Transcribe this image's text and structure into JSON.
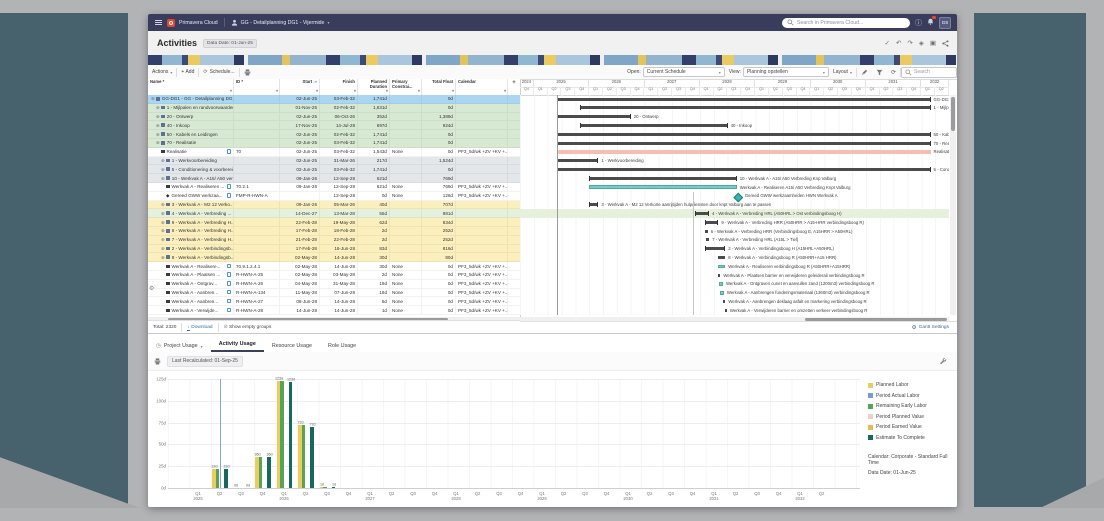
{
  "frame": {
    "wall_color": "#47626d"
  },
  "navbar": {
    "brand": "Primavera Cloud",
    "project": "GG - Detailplanning DG1 - Vijermide",
    "search_placeholder": "Search in Primavera Cloud...",
    "avatar": "GS"
  },
  "page": {
    "title": "Activities",
    "data_date_label": "Data Date: 01-Jun-25"
  },
  "table_toolbar": {
    "actions": "Actions",
    "add": "+ Add",
    "schedule": "Schedule..."
  },
  "gantt_toolbar": {
    "open_label": "Open:",
    "open_value": "Current Schedule",
    "view_label": "View:",
    "view_value": "Planning opstellen",
    "layout": "Layout",
    "search_placeholder": "Search"
  },
  "table": {
    "columns": [
      {
        "label": "Name *",
        "w": 86,
        "align": "left",
        "sort": false
      },
      {
        "label": "ID *",
        "w": 46,
        "align": "left",
        "sort": false
      },
      {
        "label": "Start",
        "w": 40,
        "align": "right",
        "sort": true
      },
      {
        "label": "Finish",
        "w": 38,
        "align": "right",
        "sort": false
      },
      {
        "label": "Planned Duration",
        "w": 32,
        "align": "right",
        "sort": false
      },
      {
        "label": "Primary Constrai...",
        "w": 32,
        "align": "left",
        "sort": false
      },
      {
        "label": "Total Float",
        "w": 34,
        "align": "right",
        "sort": false
      },
      {
        "label": "Calendar",
        "w": 52,
        "align": "left",
        "sort": false
      }
    ],
    "rows": [
      {
        "name": "GG-DG1 - GG - Detailplanning DG1 -...",
        "icon": "wbs",
        "lvl": 0,
        "bg": "sel",
        "note": false,
        "id": "",
        "start": "02-Jun-25",
        "finish": "03-Feb-32",
        "dur": "1,741d",
        "constr": "",
        "float": "0d",
        "cal": ""
      },
      {
        "name": "1 - Mijlpalen en randvoorwaarden",
        "icon": "wbs",
        "lvl": 1,
        "bg": "green",
        "note": false,
        "id": "",
        "start": "01-Nov-25",
        "finish": "02-Feb-32",
        "dur": "1,631d",
        "constr": "",
        "float": "0d",
        "cal": ""
      },
      {
        "name": "20 - Ontwerp",
        "icon": "wbs",
        "lvl": 1,
        "bg": "green",
        "note": false,
        "id": "",
        "start": "02-Jun-25",
        "finish": "06-Oct-26",
        "dur": "352d",
        "constr": "",
        "float": "1,389d",
        "cal": ""
      },
      {
        "name": "40 - Inkoop",
        "icon": "wbs",
        "lvl": 1,
        "bg": "green",
        "note": false,
        "id": "",
        "start": "17-Nov-25",
        "finish": "14-Jul-28",
        "dur": "697d",
        "constr": "",
        "float": "924d",
        "cal": ""
      },
      {
        "name": "50 - Kabels en Leidingen",
        "icon": "wbs",
        "lvl": 1,
        "bg": "green",
        "note": false,
        "id": "",
        "start": "02-Jun-25",
        "finish": "02-Feb-32",
        "dur": "1,741d",
        "constr": "",
        "float": "0d",
        "cal": ""
      },
      {
        "name": "70 - Realisatie",
        "icon": "wbs",
        "lvl": 1,
        "bg": "green",
        "note": false,
        "id": "",
        "start": "02-Jun-25",
        "finish": "03-Feb-32",
        "dur": "1,741d",
        "constr": "",
        "float": "0d",
        "cal": ""
      },
      {
        "name": "Realisatie",
        "icon": "act",
        "lvl": 2,
        "bg": "white",
        "note": true,
        "id": "70",
        "start": "02-Jun-25",
        "finish": "03-Feb-32",
        "dur": "1,543d",
        "constr": "None",
        "float": "0d",
        "cal": "PF3_5d/wk +ZV +KV +..."
      },
      {
        "name": "1 - Werkvoorbereiding",
        "icon": "wbs",
        "lvl": 2,
        "bg": "gray",
        "note": false,
        "id": "",
        "start": "02-Jun-25",
        "finish": "31-Mar-26",
        "dur": "217d",
        "constr": "",
        "float": "1,524d",
        "cal": ""
      },
      {
        "name": "5 - Conditionering & voorbereid...",
        "icon": "wbs",
        "lvl": 2,
        "bg": "gray",
        "note": false,
        "id": "",
        "start": "02-Jun-25",
        "finish": "03-Feb-32",
        "dur": "1,741d",
        "constr": "",
        "float": "0d",
        "cal": ""
      },
      {
        "name": "10 - Werkvak A - A15/ A50 ver...",
        "icon": "wbs",
        "lvl": 2,
        "bg": "gray",
        "note": false,
        "id": "",
        "start": "09-Jan-26",
        "finish": "12-Sep-28",
        "dur": "621d",
        "constr": "",
        "float": "769d",
        "cal": ""
      },
      {
        "name": "Werkvak A - Realiseren ...",
        "icon": "act",
        "lvl": 3,
        "bg": "white",
        "note": true,
        "id": "70.2.1",
        "start": "09-Jan-26",
        "finish": "12-Sep-28",
        "dur": "621d",
        "constr": "None",
        "float": "769d",
        "cal": "PF3_5d/wk +ZV +KV +..."
      },
      {
        "name": "Gereed GWW werkzaa...",
        "icon": "ms",
        "lvl": 3,
        "bg": "white",
        "note": true,
        "id": "FMP-R-HWN-A",
        "start": "",
        "finish": "12-Sep-28",
        "dur": "0d",
        "constr": "None",
        "float": "126d",
        "cal": "PF3_5d/wk +ZV +KV +..."
      },
      {
        "name": "3 - Werkvak A - M2 12 Verko...",
        "icon": "wbs",
        "lvl": 2,
        "bg": "yellow",
        "note": false,
        "id": "",
        "start": "09-Jan-26",
        "finish": "05-Mar-26",
        "dur": "40d",
        "constr": "",
        "float": "707d",
        "cal": ""
      },
      {
        "name": "4 - Werkvak A - Verbreding ...",
        "icon": "wbs",
        "lvl": 2,
        "bg": "hl",
        "note": false,
        "id": "",
        "start": "14-Dec-27",
        "finish": "13-Mar-28",
        "dur": "55d",
        "constr": "",
        "float": "881d",
        "cal": ""
      },
      {
        "name": "9 - Werkvak A - Verbreding H...",
        "icon": "wbs",
        "lvl": 2,
        "bg": "yellow",
        "note": false,
        "id": "",
        "start": "22-Feb-28",
        "finish": "19-May-28",
        "dur": "62d",
        "constr": "",
        "float": "834d",
        "cal": ""
      },
      {
        "name": "6 - Werkvak A - Verbreding H...",
        "icon": "wbs",
        "lvl": 2,
        "bg": "yellow",
        "note": false,
        "id": "",
        "start": "17-Feb-28",
        "finish": "18-Feb-28",
        "dur": "2d",
        "constr": "",
        "float": "252d",
        "cal": ""
      },
      {
        "name": "7 - Werkvak A - Verbreding H...",
        "icon": "wbs",
        "lvl": 2,
        "bg": "yellow",
        "note": false,
        "id": "",
        "start": "21-Feb-28",
        "finish": "22-Feb-28",
        "dur": "2d",
        "constr": "",
        "float": "252d",
        "cal": ""
      },
      {
        "name": "2 - Werkvak A - Verbindingsb...",
        "icon": "wbs",
        "lvl": 2,
        "bg": "yellow",
        "note": false,
        "id": "",
        "start": "17-Feb-28",
        "finish": "16-Jun-28",
        "dur": "83d",
        "constr": "",
        "float": "816d",
        "cal": ""
      },
      {
        "name": "8 - Werkvak A - Verbindingsb...",
        "icon": "wbs",
        "lvl": 2,
        "bg": "yellow",
        "note": false,
        "id": "",
        "start": "02-May-28",
        "finish": "14-Jun-28",
        "dur": "30d",
        "constr": "",
        "float": "80d",
        "cal": ""
      },
      {
        "name": "Werkvak A - Realisere...",
        "icon": "act",
        "lvl": 3,
        "bg": "white",
        "note": true,
        "id": "70.9.1.2.4.1",
        "start": "02-May-28",
        "finish": "14-Jun-28",
        "dur": "30d",
        "constr": "None",
        "float": "0d",
        "cal": "PF3_5d/wk +ZV +KV +..."
      },
      {
        "name": "Werkvak A - Plaatsen ...",
        "icon": "act",
        "lvl": 3,
        "bg": "white",
        "note": true,
        "id": "R-HWN-A-25",
        "start": "02-May-28",
        "finish": "03-May-28",
        "dur": "2d",
        "constr": "None",
        "float": "0d",
        "cal": "PF3_5d/wk +ZV +KV +..."
      },
      {
        "name": "Werkvak A - Ontgrav...",
        "icon": "act",
        "lvl": 3,
        "bg": "white",
        "note": true,
        "id": "R-HWN-A-26",
        "start": "04-May-28",
        "finish": "31-May-28",
        "dur": "19d",
        "constr": "None",
        "float": "0d",
        "cal": "PF3_5d/wk +ZV +KV +..."
      },
      {
        "name": "Werkvak A - Aanbren...",
        "icon": "act",
        "lvl": 3,
        "bg": "white",
        "note": true,
        "id": "R-HWN-A-134",
        "start": "11-May-28",
        "finish": "07-Jun-28",
        "dur": "18d",
        "constr": "None",
        "float": "0d",
        "cal": "PF3_5d/wk +ZV +KV +..."
      },
      {
        "name": "Werkvak A - Aanbren...",
        "icon": "act",
        "lvl": 3,
        "bg": "white",
        "note": true,
        "id": "R-HWN-A-27",
        "start": "08-Jun-28",
        "finish": "14-Jun-28",
        "dur": "5d",
        "constr": "None",
        "float": "0d",
        "cal": "PF3_5d/wk +ZV +KV +..."
      },
      {
        "name": "Werkvak A - Verwijde...",
        "icon": "act",
        "lvl": 3,
        "bg": "white",
        "note": true,
        "id": "R-HWN-A-28",
        "start": "14-Jun-28",
        "finish": "14-Jun-28",
        "dur": "1d",
        "constr": "None",
        "float": "0d",
        "cal": "PF3_5d/wk +ZV +KV +..."
      }
    ],
    "footer": {
      "total": "Total: 2320",
      "download": "Download",
      "show_empty": "Show empty groups"
    }
  },
  "gantt": {
    "span_months": 93,
    "data_date_month": 8,
    "focus_month": 37.5,
    "settings_label": "Gantt Settings",
    "years": [
      {
        "label": "2024",
        "quarters": [
          "Q4"
        ]
      },
      {
        "label": "2025",
        "quarters": [
          "Q1",
          "Q2",
          "Q3",
          "Q4"
        ]
      },
      {
        "label": "2026",
        "quarters": [
          "Q1",
          "Q2",
          "Q3",
          "Q4"
        ]
      },
      {
        "label": "2027",
        "quarters": [
          "Q1",
          "Q2",
          "Q3",
          "Q4"
        ]
      },
      {
        "label": "2028",
        "quarters": [
          "Q1",
          "Q2",
          "Q3",
          "Q4"
        ]
      },
      {
        "label": "2029",
        "quarters": [
          "Q1",
          "Q2",
          "Q3",
          "Q4"
        ]
      },
      {
        "label": "2030",
        "quarters": [
          "Q1",
          "Q2",
          "Q3",
          "Q4"
        ]
      },
      {
        "label": "2031",
        "quarters": [
          "Q1",
          "Q2",
          "Q3",
          "Q4"
        ]
      },
      {
        "label": "2032",
        "quarters": [
          "Q1",
          "Q2"
        ]
      }
    ],
    "rows": [
      {
        "kind": "summary",
        "s": 8,
        "e": 89,
        "label": "GG-DG1"
      },
      {
        "kind": "summary",
        "s": 13,
        "e": 89,
        "label": "1 - Mijlp..."
      },
      {
        "kind": "summary",
        "s": 8,
        "e": 24,
        "label": "20 - Ontwerp"
      },
      {
        "kind": "summary",
        "s": 13,
        "e": 45,
        "label": "40 - Inkoop"
      },
      {
        "kind": "summary",
        "s": 8,
        "e": 89,
        "label": "50 - Kab"
      },
      {
        "kind": "summary",
        "s": 8,
        "e": 89,
        "label": "70 - Rea"
      },
      {
        "kind": "salmon",
        "s": 8,
        "e": 89,
        "label": "Realisati"
      },
      {
        "kind": "summary",
        "s": 8,
        "e": 17,
        "label": "1 - Werkvoorbereiding"
      },
      {
        "kind": "summary",
        "s": 8,
        "e": 89,
        "label": "5 - Cond"
      },
      {
        "kind": "summary",
        "s": 15,
        "e": 47,
        "label": "10 - Werkvak A - A15/ A50 Verbreding Knp Valburg"
      },
      {
        "kind": "teal",
        "s": 15,
        "e": 47,
        "label": "Werkvak A - Realiseren A15/ A50 Verbreding Knpt Valburg"
      },
      {
        "kind": "milestone",
        "s": 47,
        "e": 47,
        "label": "Gereed GWW werkzaamheden HWN Werkvak A"
      },
      {
        "kind": "summary",
        "s": 15,
        "e": 17,
        "label": "3 - Werkvak A - M2 12 Verkorte aanrijtijden hulpdiensten door knpt Valburg aan te passen"
      },
      {
        "kind": "summary",
        "s": 38,
        "e": 41,
        "label": "4 - Werkvak A - Verbreding HRL (A50HRL > Ost verbindingsboog H)",
        "hl": true
      },
      {
        "kind": "summary",
        "s": 40,
        "e": 43,
        "label": "9 - Werkvak A - Verbreding HRR (A50HRR > A15-HRR verbindingsboog R)"
      },
      {
        "kind": "small",
        "s": 40,
        "e": 40.7,
        "label": "6 - Werkvak A - Verbreding HRR (Verbindingsboog E, A15HRR > A50HRL)"
      },
      {
        "kind": "small",
        "s": 40.3,
        "e": 41,
        "label": "7 - Werkvak A - Verbreding HRL (A15L > Tiel)"
      },
      {
        "kind": "summary",
        "s": 40,
        "e": 44.5,
        "label": "2 - Werkvak A - Verbindingsboog H (A15HRL+A50HRL)"
      },
      {
        "kind": "summary",
        "s": 43,
        "e": 44.5,
        "label": "8 - Werkvak A - Verbindingsboog R (A50HRR+A15 HRR)"
      },
      {
        "kind": "teal",
        "s": 43,
        "e": 44.5,
        "label": "Werkvak A - Realiseren verbindingsboog R (A50HRR+A15HRR)"
      },
      {
        "kind": "small",
        "s": 43,
        "e": 43.3,
        "label": "Werkvak A - Plaatsen barrier en verwijderen geleiderail verbindingsboog R"
      },
      {
        "kind": "teal",
        "s": 43.1,
        "e": 44,
        "label": "Werkvak A - Ontgraven cunet en aanvullen zand (1200m3) verbindingsboog R"
      },
      {
        "kind": "teal",
        "s": 43.4,
        "e": 44.2,
        "label": "Werkvak A - Aanbrengen funderingsmateriaal (1360m3) verbindingsboog R"
      },
      {
        "kind": "small",
        "s": 44.1,
        "e": 44.5,
        "label": "Werkvak A - Aanbrengen deklaag asfalt en markering verbindingsboog R"
      },
      {
        "kind": "small",
        "s": 44.4,
        "e": 44.6,
        "label": "Werkvak A - Verwijderen barrier en omzetten verkeer verbindingsboog R"
      }
    ]
  },
  "bottom": {
    "tabs": [
      {
        "label": "Project Usage",
        "dropdown": true,
        "active": false
      },
      {
        "label": "Activity Usage",
        "dropdown": false,
        "active": true
      },
      {
        "label": "Resource Usage",
        "dropdown": false,
        "active": false
      },
      {
        "label": "Role Usage",
        "dropdown": false,
        "active": false
      }
    ],
    "last_recalculated": "Last Recalculated: 01-Sep-25"
  },
  "chart_data": {
    "type": "bar",
    "title": "Activity Usage",
    "xlabel": "",
    "ylabel": "",
    "y_unit": "d",
    "ylim": [
      0,
      125
    ],
    "y_ticks": [
      0,
      25,
      50,
      75,
      100,
      125
    ],
    "grid": true,
    "legend_position": "right",
    "quarters": [
      {
        "q": "Q1",
        "year": "2025"
      },
      {
        "q": "Q2",
        "year": ""
      },
      {
        "q": "Q3",
        "year": ""
      },
      {
        "q": "Q4",
        "year": ""
      },
      {
        "q": "Q1",
        "year": "2026"
      },
      {
        "q": "Q2",
        "year": ""
      },
      {
        "q": "Q3",
        "year": ""
      },
      {
        "q": "Q4",
        "year": ""
      },
      {
        "q": "Q1",
        "year": "2027"
      },
      {
        "q": "Q2",
        "year": ""
      },
      {
        "q": "Q3",
        "year": ""
      },
      {
        "q": "Q4",
        "year": ""
      },
      {
        "q": "Q1",
        "year": "2028"
      },
      {
        "q": "Q2",
        "year": ""
      },
      {
        "q": "Q3",
        "year": ""
      },
      {
        "q": "Q4",
        "year": ""
      },
      {
        "q": "Q1",
        "year": "2029"
      },
      {
        "q": "Q2",
        "year": ""
      },
      {
        "q": "Q3",
        "year": ""
      },
      {
        "q": "Q4",
        "year": ""
      },
      {
        "q": "Q1",
        "year": "2030"
      },
      {
        "q": "Q2",
        "year": ""
      },
      {
        "q": "Q3",
        "year": ""
      },
      {
        "q": "Q4",
        "year": ""
      },
      {
        "q": "Q1",
        "year": "2031"
      },
      {
        "q": "Q2",
        "year": ""
      },
      {
        "q": "Q3",
        "year": ""
      },
      {
        "q": "Q4",
        "year": ""
      },
      {
        "q": "Q1",
        "year": "2032"
      },
      {
        "q": "Q2",
        "year": ""
      }
    ],
    "series": [
      {
        "name": "Planned Labor",
        "color": "#eccc5f",
        "values": [
          0,
          22,
          0,
          36,
          123,
          72,
          1,
          0,
          0,
          0,
          0,
          0,
          0,
          0,
          0,
          0,
          0,
          0,
          0,
          0,
          0,
          0,
          0,
          0,
          0,
          0,
          0,
          0,
          0,
          0
        ]
      },
      {
        "name": "Remaining Early Labor",
        "color": "#56a556",
        "values": [
          0,
          22,
          0,
          36,
          123,
          72,
          1,
          0,
          0,
          0,
          0,
          0,
          0,
          0,
          0,
          0,
          0,
          0,
          0,
          0,
          0,
          0,
          0,
          0,
          0,
          0,
          0,
          0,
          0,
          0
        ]
      },
      {
        "name": "Estimate To Complete",
        "color": "#176960",
        "values": [
          0,
          22,
          0,
          36,
          122,
          70,
          1,
          0,
          0,
          0,
          0,
          0,
          0,
          0,
          0,
          0,
          0,
          0,
          0,
          0,
          0,
          0,
          0,
          0,
          0,
          0,
          0,
          0,
          0,
          0
        ]
      }
    ],
    "group_labels": [
      "",
      "22d",
      "0d",
      "36d",
      "123d",
      "72d",
      "1d",
      "",
      "",
      "",
      "",
      "",
      "",
      "",
      "",
      "",
      "",
      "",
      "",
      "",
      "",
      "",
      "",
      "",
      "",
      "",
      "",
      "",
      "",
      ""
    ],
    "data_date_index": 1,
    "legend": [
      {
        "label": "Planned Labor",
        "color": "#eccc5f"
      },
      {
        "label": "Period Actual Labor",
        "color": "#6f9fd8"
      },
      {
        "label": "Remaining Early Labor",
        "color": "#56a556"
      },
      {
        "label": "Period Planned Value",
        "color": "#f2cfc5"
      },
      {
        "label": "Period Earned Value",
        "color": "#ecb84f"
      },
      {
        "label": "Estimate To Complete",
        "color": "#176960"
      }
    ],
    "calendar_note": "Calendar: Corporate - Standard Full Time",
    "data_date_note": "Data Date: 01-Jun-25"
  }
}
